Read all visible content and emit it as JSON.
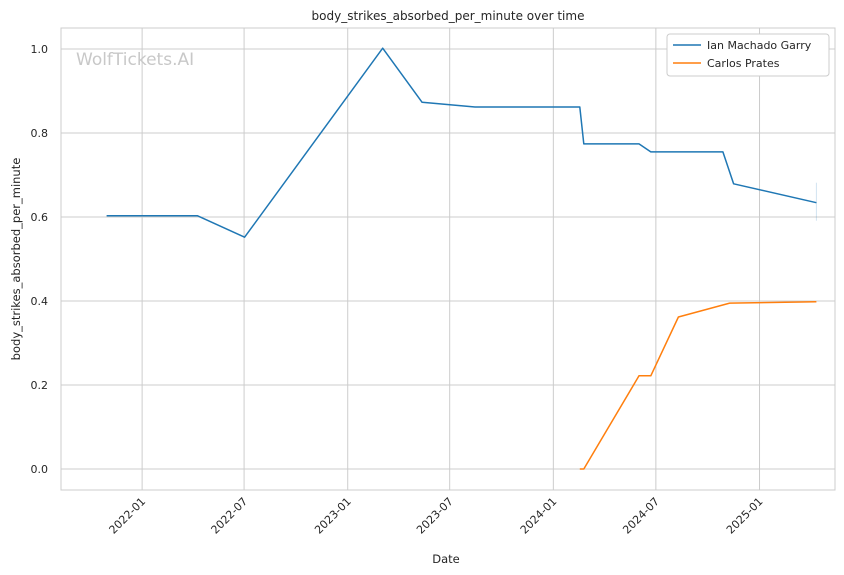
{
  "chart_data": {
    "type": "line",
    "title": "body_strikes_absorbed_per_minute over time",
    "xlabel": "Date",
    "ylabel": "body_strikes_absorbed_per_minute",
    "watermark": "WolfTickets.AI",
    "x_ticks": [
      "2022-01",
      "2022-07",
      "2023-01",
      "2023-07",
      "2024-01",
      "2024-07",
      "2025-01"
    ],
    "y_ticks": [
      "0.0",
      "0.2",
      "0.4",
      "0.6",
      "0.8",
      "1.0"
    ],
    "ylim": [
      -0.05,
      1.05
    ],
    "xlim": [
      "2021-08-10",
      "2025-05-15"
    ],
    "grid": true,
    "legend_position": "top-right",
    "series": [
      {
        "name": "Ian Machado Garry",
        "color": "#1f77b4",
        "x": [
          "2021-10-30",
          "2022-04-09",
          "2022-07-02",
          "2023-03-04",
          "2023-05-13",
          "2023-08-15",
          "2024-02-17",
          "2024-02-24",
          "2024-06-01",
          "2024-06-22",
          "2024-10-28",
          "2024-11-16",
          "2025-04-12"
        ],
        "y": [
          0.603,
          0.603,
          0.552,
          1.002,
          0.873,
          0.862,
          0.862,
          0.774,
          0.774,
          0.755,
          0.755,
          0.679,
          0.634
        ]
      },
      {
        "name": "Carlos Prates",
        "color": "#ff7f0e",
        "x": [
          "2024-02-17",
          "2024-02-24",
          "2024-06-01",
          "2024-06-22",
          "2024-08-10",
          "2024-11-09",
          "2025-04-12"
        ],
        "y": [
          0.0,
          0.0,
          0.222,
          0.222,
          0.362,
          0.395,
          0.398
        ]
      }
    ]
  }
}
